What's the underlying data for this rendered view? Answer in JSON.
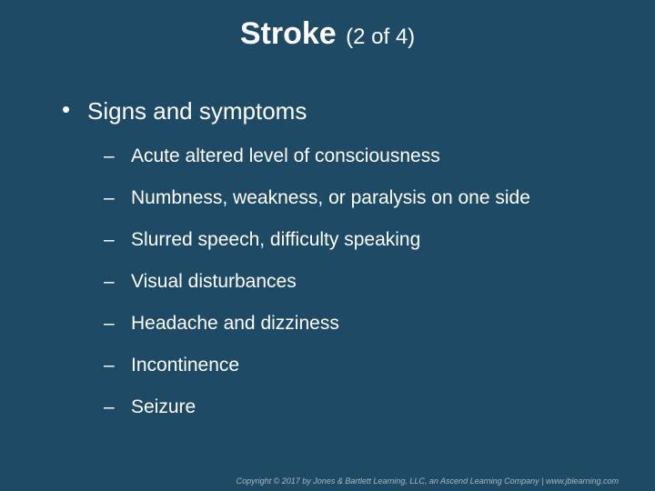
{
  "slide": {
    "title_main": "Stroke",
    "title_sub": "(2 of 4)",
    "heading": "Signs and symptoms",
    "items": [
      "Acute altered level of consciousness",
      "Numbness, weakness, or paralysis on one side",
      "Slurred speech, difficulty speaking",
      "Visual disturbances",
      "Headache and dizziness",
      "Incontinence",
      "Seizure"
    ],
    "footer": "Copyright © 2017 by Jones & Bartlett Learning, LLC, an Ascend Learning Company | www.jblearning.com"
  },
  "style": {
    "background_color": "#1f4a66",
    "text_color": "#ffffff",
    "footer_color": "#a8b8c4",
    "title_main_fontsize": 34,
    "title_main_weight": 700,
    "title_sub_fontsize": 24,
    "level1_fontsize": 26,
    "level2_fontsize": 21,
    "footer_fontsize": 9,
    "font_family": "Arial"
  }
}
